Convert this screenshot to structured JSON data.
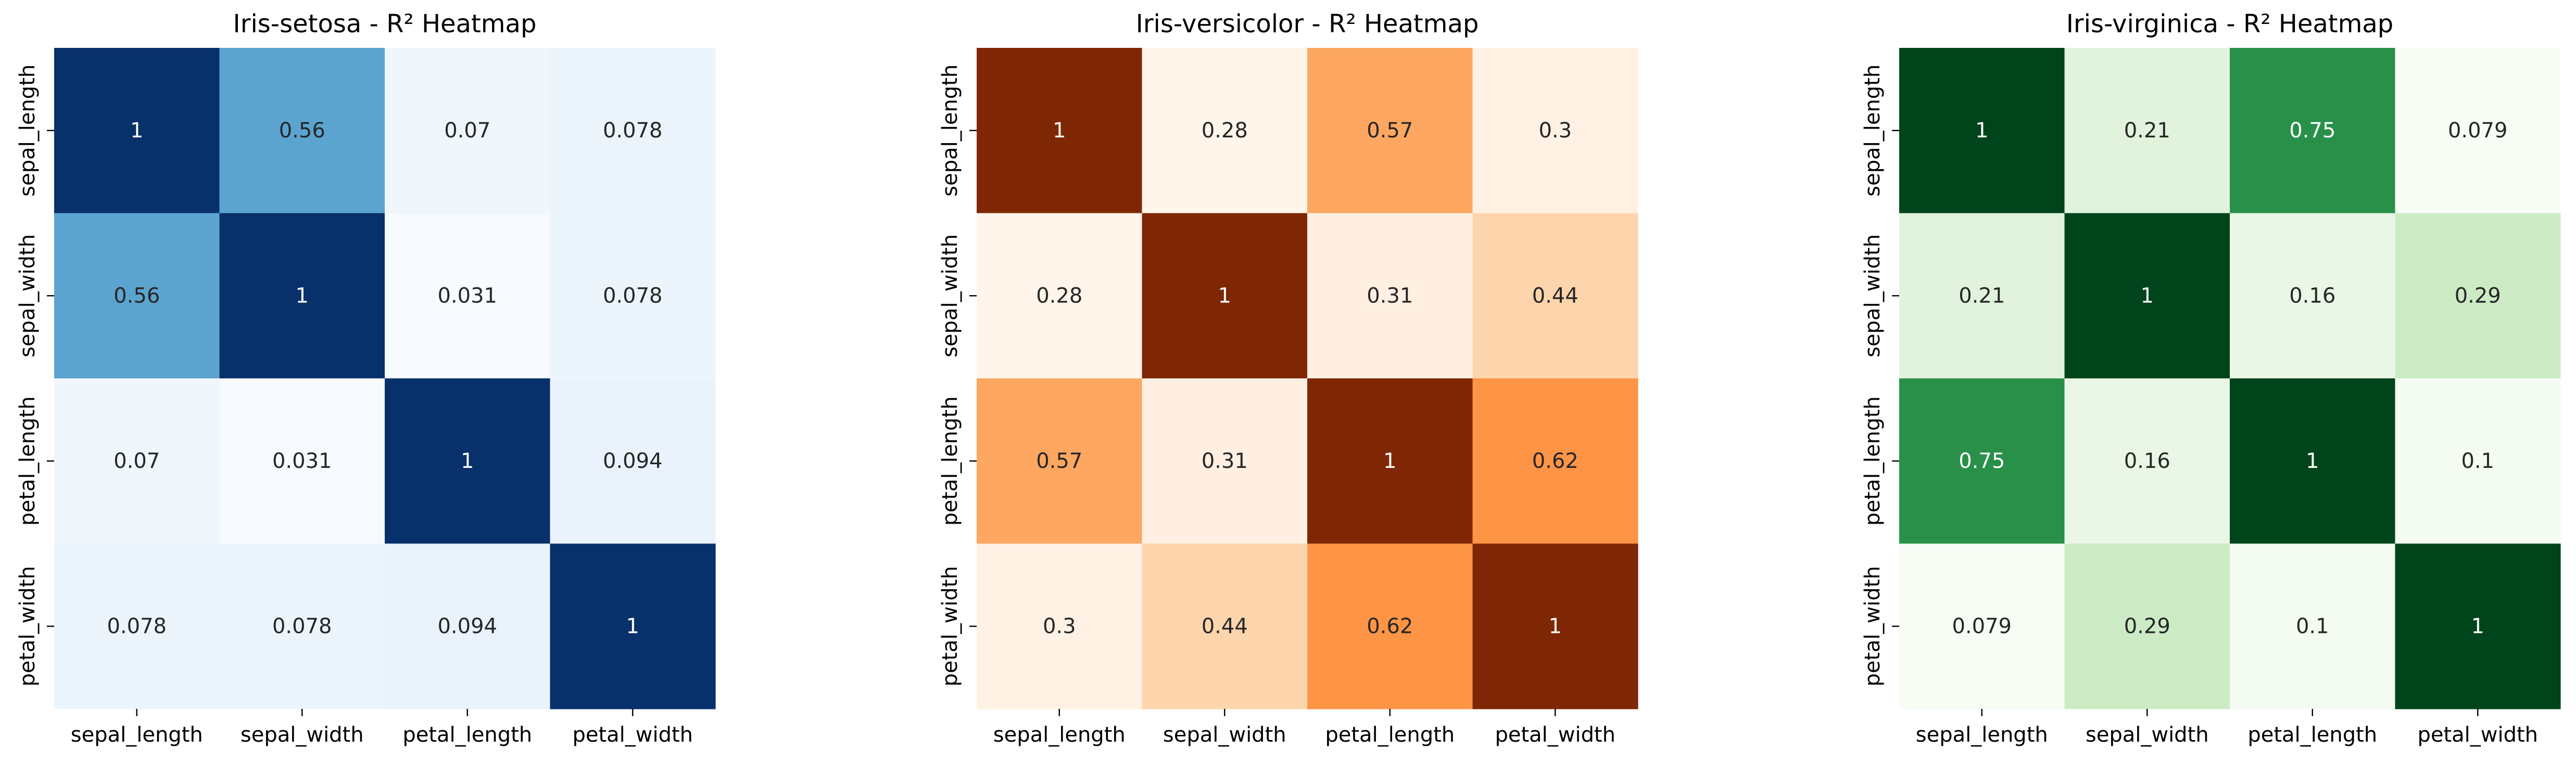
{
  "chart_data": [
    {
      "type": "heatmap",
      "title": "Iris-setosa - R² Heatmap",
      "x_labels": [
        "sepal_length",
        "sepal_width",
        "petal_length",
        "petal_width"
      ],
      "y_labels": [
        "sepal_length",
        "sepal_width",
        "petal_length",
        "petal_width"
      ],
      "values": [
        [
          1,
          0.56,
          0.07,
          0.078
        ],
        [
          0.56,
          1,
          0.031,
          0.078
        ],
        [
          0.07,
          0.031,
          1,
          0.094
        ],
        [
          0.078,
          0.078,
          0.094,
          1
        ]
      ],
      "colormap": "Blues",
      "colorbar": false
    },
    {
      "type": "heatmap",
      "title": "Iris-versicolor - R² Heatmap",
      "x_labels": [
        "sepal_length",
        "sepal_width",
        "petal_length",
        "petal_width"
      ],
      "y_labels": [
        "sepal_length",
        "sepal_width",
        "petal_length",
        "petal_width"
      ],
      "values": [
        [
          1,
          0.28,
          0.57,
          0.3
        ],
        [
          0.28,
          1,
          0.31,
          0.44
        ],
        [
          0.57,
          0.31,
          1,
          0.62
        ],
        [
          0.3,
          0.44,
          0.62,
          1
        ]
      ],
      "colormap": "Oranges",
      "colorbar": false
    },
    {
      "type": "heatmap",
      "title": "Iris-virginica - R² Heatmap",
      "x_labels": [
        "sepal_length",
        "sepal_width",
        "petal_length",
        "petal_width"
      ],
      "y_labels": [
        "sepal_length",
        "sepal_width",
        "petal_length",
        "petal_width"
      ],
      "values": [
        [
          1,
          0.21,
          0.75,
          0.079
        ],
        [
          0.21,
          1,
          0.16,
          0.29
        ],
        [
          0.75,
          0.16,
          1,
          0.1
        ],
        [
          0.079,
          0.29,
          0.1,
          1
        ]
      ],
      "colormap": "Greens",
      "colorbar": false
    }
  ]
}
